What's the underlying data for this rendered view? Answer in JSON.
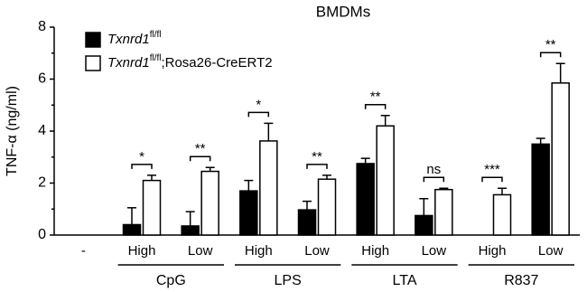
{
  "chart_data": {
    "type": "bar",
    "title": "BMDMs",
    "y_label": "TNF-α (ng/ml)",
    "categories": [
      "-",
      "High",
      "Low",
      "High",
      "Low",
      "High",
      "Low",
      "High",
      "Low"
    ],
    "groups": [
      {
        "label": "CpG",
        "from": 1,
        "to": 2
      },
      {
        "label": "LPS",
        "from": 3,
        "to": 4
      },
      {
        "label": "LTA",
        "from": 5,
        "to": 6
      },
      {
        "label": "R837",
        "from": 7,
        "to": 8
      }
    ],
    "series": [
      {
        "name": [
          "Txnrd1",
          "fl/fl"
        ],
        "color": "#000000",
        "values": [
          null,
          0.4,
          0.35,
          1.7,
          0.97,
          2.75,
          0.75,
          0,
          3.5
        ],
        "errors": [
          null,
          0.65,
          0.55,
          0.4,
          0.33,
          0.2,
          0.65,
          null,
          0.22
        ]
      },
      {
        "name": [
          "Txnrd1",
          "fl/fl",
          ";Rosa26-CreERT2"
        ],
        "color": "#ffffff",
        "values": [
          null,
          2.1,
          2.45,
          3.62,
          2.15,
          4.2,
          1.75,
          1.55,
          5.85
        ],
        "errors": [
          null,
          0.2,
          0.15,
          0.68,
          0.15,
          0.4,
          0.05,
          0.25,
          0.75
        ]
      }
    ],
    "significance": [
      null,
      "*",
      "**",
      "*",
      "**",
      "**",
      "ns",
      "***",
      "**"
    ],
    "ylim": [
      0,
      8
    ],
    "yticks": [
      0,
      2,
      4,
      6,
      8
    ]
  }
}
